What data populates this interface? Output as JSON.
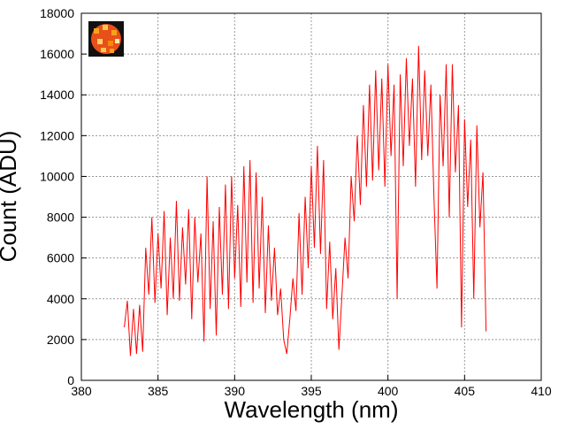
{
  "chart_data": {
    "type": "line",
    "x_label": "Wavelength (nm)",
    "y_label": "Count (ADU)",
    "xlim": [
      380,
      410
    ],
    "ylim": [
      0,
      18000
    ],
    "xticks": [
      380,
      385,
      390,
      395,
      400,
      405,
      410
    ],
    "yticks": [
      0,
      2000,
      4000,
      6000,
      8000,
      10000,
      12000,
      14000,
      16000,
      18000
    ],
    "grid": true,
    "series": [
      {
        "color": "#ff0000",
        "x": [
          382.8,
          383.0,
          383.2,
          383.4,
          383.6,
          383.8,
          384.0,
          384.2,
          384.4,
          384.6,
          384.8,
          385.0,
          385.2,
          385.4,
          385.6,
          385.8,
          386.0,
          386.2,
          386.4,
          386.6,
          386.8,
          387.0,
          387.2,
          387.4,
          387.6,
          387.8,
          388.0,
          388.2,
          388.4,
          388.6,
          388.8,
          389.0,
          389.2,
          389.4,
          389.6,
          389.8,
          390.0,
          390.2,
          390.4,
          390.6,
          390.8,
          391.0,
          391.2,
          391.4,
          391.6,
          391.8,
          392.0,
          392.2,
          392.4,
          392.6,
          392.8,
          393.0,
          393.2,
          393.4,
          393.6,
          393.8,
          394.0,
          394.2,
          394.4,
          394.6,
          394.8,
          395.0,
          395.2,
          395.4,
          395.6,
          395.8,
          396.0,
          396.2,
          396.4,
          396.6,
          396.8,
          397.0,
          397.2,
          397.4,
          397.6,
          397.8,
          398.0,
          398.2,
          398.4,
          398.6,
          398.8,
          399.0,
          399.2,
          399.4,
          399.6,
          399.8,
          400.0,
          400.2,
          400.4,
          400.6,
          400.8,
          401.0,
          401.2,
          401.4,
          401.6,
          401.8,
          402.0,
          402.2,
          402.4,
          402.6,
          402.8,
          403.0,
          403.2,
          403.4,
          403.6,
          403.8,
          404.0,
          404.2,
          404.4,
          404.6,
          404.8,
          405.0,
          405.2,
          405.4,
          405.6,
          405.8,
          406.0,
          406.2,
          406.4
        ],
        "values": [
          2600,
          3900,
          1200,
          3500,
          1300,
          3700,
          1400,
          6500,
          4200,
          8000,
          3800,
          7200,
          4500,
          8300,
          3200,
          7000,
          4000,
          8800,
          3900,
          7500,
          4700,
          8400,
          3000,
          8000,
          4800,
          7200,
          1900,
          10000,
          3500,
          7800,
          2200,
          8500,
          4200,
          9600,
          3500,
          10000,
          5000,
          8600,
          3600,
          10500,
          4800,
          10800,
          3800,
          10200,
          4500,
          9000,
          3300,
          7600,
          3900,
          6500,
          3200,
          4500,
          2000,
          1300,
          3000,
          5000,
          3400,
          8200,
          4200,
          9000,
          5500,
          10500,
          6500,
          11500,
          6200,
          10800,
          3500,
          6800,
          3000,
          5500,
          1500,
          4200,
          7000,
          5000,
          10000,
          7800,
          12000,
          8600,
          13500,
          9500,
          14500,
          9800,
          15200,
          10300,
          14800,
          9500,
          15500,
          11000,
          14500,
          4000,
          15000,
          10500,
          15800,
          11500,
          14800,
          9500,
          16400,
          10800,
          15200,
          11000,
          14500,
          9000,
          4500,
          14000,
          10500,
          15500,
          8000,
          15500,
          10200,
          13500,
          2600,
          12800,
          8500,
          11800,
          4000,
          12500,
          7500,
          10200,
          2400
        ]
      }
    ]
  }
}
